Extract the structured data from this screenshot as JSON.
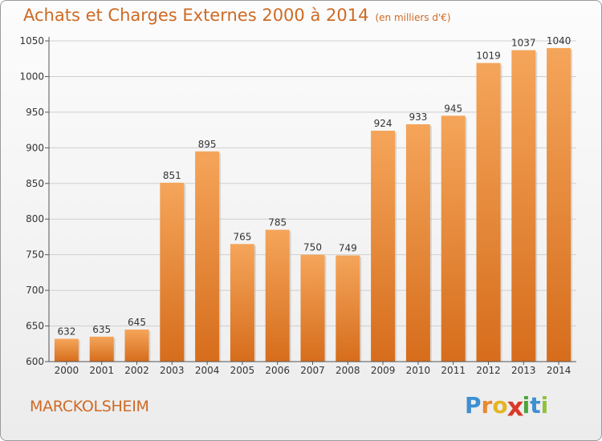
{
  "header": {
    "title": "Achats et Charges Externes 2000 à 2014",
    "subtitle": "(en milliers d'€)"
  },
  "footer": {
    "city": "MARCKOLSHEIM",
    "logo_letters": [
      "P",
      "r",
      "o",
      "x",
      "i",
      "t",
      "i"
    ]
  },
  "colors": {
    "bar_top": "#f5a55a",
    "bar_bottom": "#d66d1c",
    "accent": "#cf6a24",
    "logo": [
      "#3d8fd1",
      "#e8892c",
      "#e6b422",
      "#d8392b",
      "#4aa53d",
      "#3d8fd1",
      "#8fc23a"
    ]
  },
  "chart_data": {
    "type": "bar",
    "categories": [
      "2000",
      "2001",
      "2002",
      "2003",
      "2004",
      "2005",
      "2006",
      "2007",
      "2008",
      "2009",
      "2010",
      "2011",
      "2012",
      "2013",
      "2014"
    ],
    "values": [
      632,
      635,
      645,
      851,
      895,
      765,
      785,
      750,
      749,
      924,
      933,
      945,
      1019,
      1037,
      1040
    ],
    "data_labels": [
      "632",
      "635",
      "645",
      "851",
      "895",
      "765",
      "785",
      "750",
      "749",
      "924",
      "933",
      "945",
      "1019",
      "1037",
      "1040"
    ],
    "ylim": [
      600,
      1050
    ],
    "yticks": [
      600,
      650,
      700,
      750,
      800,
      850,
      900,
      950,
      1000,
      1050
    ],
    "grid": true
  }
}
